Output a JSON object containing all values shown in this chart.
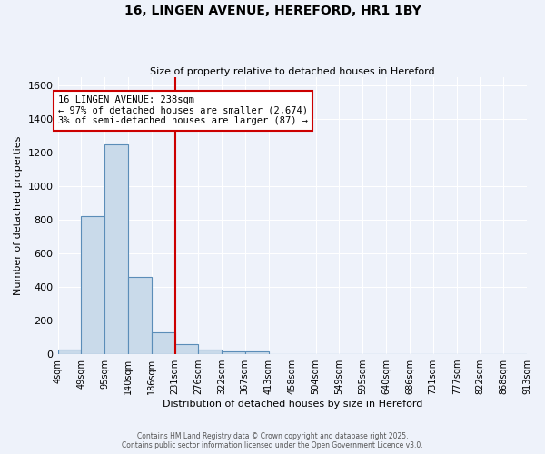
{
  "title": "16, LINGEN AVENUE, HEREFORD, HR1 1BY",
  "subtitle": "Size of property relative to detached houses in Hereford",
  "xlabel": "Distribution of detached houses by size in Hereford",
  "ylabel": "Number of detached properties",
  "bins": [
    "4sqm",
    "49sqm",
    "95sqm",
    "140sqm",
    "186sqm",
    "231sqm",
    "276sqm",
    "322sqm",
    "367sqm",
    "413sqm",
    "458sqm",
    "504sqm",
    "549sqm",
    "595sqm",
    "640sqm",
    "686sqm",
    "731sqm",
    "777sqm",
    "822sqm",
    "868sqm",
    "913sqm"
  ],
  "bin_edges": [
    4,
    49,
    95,
    140,
    186,
    231,
    276,
    322,
    367,
    413,
    458,
    504,
    549,
    595,
    640,
    686,
    731,
    777,
    822,
    868,
    913
  ],
  "values": [
    25,
    820,
    1250,
    460,
    130,
    60,
    25,
    15,
    15,
    0,
    0,
    0,
    0,
    0,
    0,
    0,
    0,
    0,
    0,
    0
  ],
  "bar_color": "#c9daea",
  "bar_edge_color": "#5b8db8",
  "vline_x": 231,
  "vline_color": "#cc0000",
  "annotation_title": "16 LINGEN AVENUE: 238sqm",
  "annotation_line1": "← 97% of detached houses are smaller (2,674)",
  "annotation_line2": "3% of semi-detached houses are larger (87) →",
  "annotation_box_color": "#ffffff",
  "annotation_box_edge": "#cc0000",
  "footer_line1": "Contains HM Land Registry data © Crown copyright and database right 2025.",
  "footer_line2": "Contains public sector information licensed under the Open Government Licence v3.0.",
  "bg_color": "#eef2fa",
  "plot_bg_color": "#eef2fa",
  "grid_color": "#ffffff",
  "ylim": [
    0,
    1650
  ],
  "yticks": [
    0,
    200,
    400,
    600,
    800,
    1000,
    1200,
    1400,
    1600
  ]
}
